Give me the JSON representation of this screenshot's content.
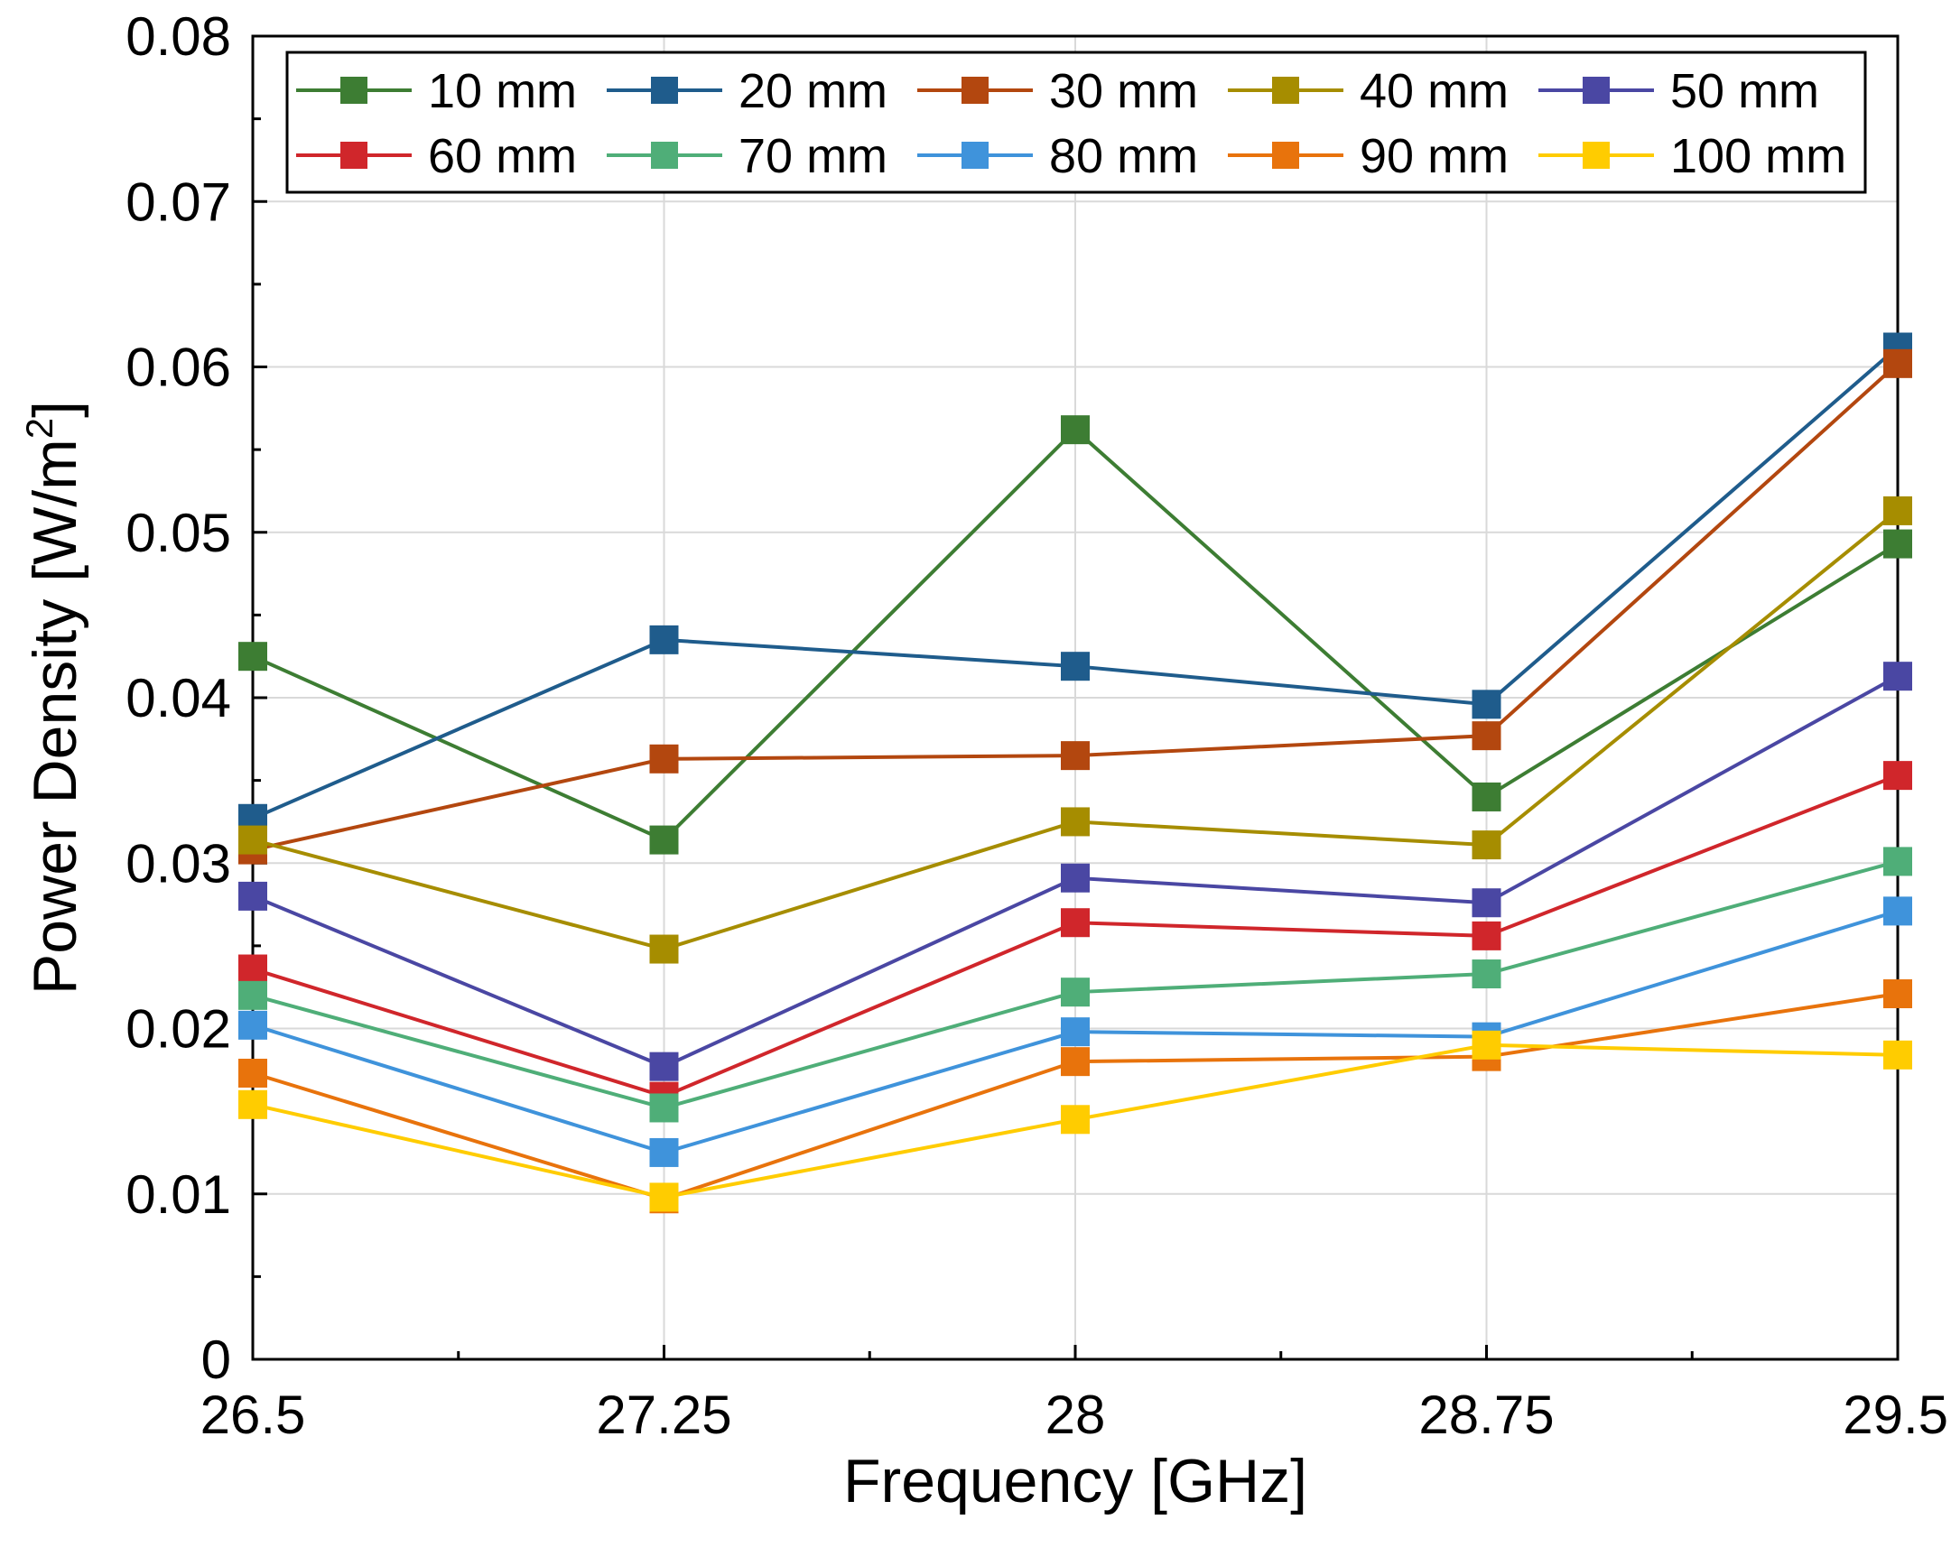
{
  "chart_data": {
    "type": "line",
    "title": "",
    "xlabel": "Frequency [GHz]",
    "ylabel_main": "Power Density [W/m",
    "ylabel_sup": "2",
    "ylabel_end": "]",
    "x": [
      26.5,
      27.25,
      28,
      28.75,
      29.5
    ],
    "x_tick_labels": [
      "26.5",
      "27.25",
      "28",
      "28.75",
      "29.5"
    ],
    "xlim": [
      26.5,
      29.5
    ],
    "y_ticks": [
      0,
      0.01,
      0.02,
      0.03,
      0.04,
      0.05,
      0.06,
      0.07,
      0.08
    ],
    "y_tick_labels": [
      "0",
      "0.01",
      "0.02",
      "0.03",
      "0.04",
      "0.05",
      "0.06",
      "0.07",
      "0.08"
    ],
    "ylim": [
      0,
      0.08
    ],
    "grid": true,
    "legend_position": "top",
    "series": [
      {
        "name": "10 mm",
        "color": "#3d7d33",
        "values": [
          0.0425,
          0.0314,
          0.0562,
          0.034,
          0.0493
        ]
      },
      {
        "name": "20 mm",
        "color": "#1f5c8c",
        "values": [
          0.0327,
          0.0435,
          0.0419,
          0.0396,
          0.0612
        ]
      },
      {
        "name": "30 mm",
        "color": "#b3470f",
        "values": [
          0.0308,
          0.0363,
          0.0365,
          0.0377,
          0.0602
        ]
      },
      {
        "name": "40 mm",
        "color": "#a68d00",
        "values": [
          0.0314,
          0.0248,
          0.0325,
          0.0311,
          0.0513
        ]
      },
      {
        "name": "50 mm",
        "color": "#4a47a3",
        "values": [
          0.028,
          0.0177,
          0.0291,
          0.0276,
          0.0413
        ]
      },
      {
        "name": "60 mm",
        "color": "#d0262b",
        "values": [
          0.0236,
          0.0159,
          0.0264,
          0.0256,
          0.0353
        ]
      },
      {
        "name": "70 mm",
        "color": "#4fae78",
        "values": [
          0.022,
          0.0152,
          0.0222,
          0.0233,
          0.0301
        ]
      },
      {
        "name": "80 mm",
        "color": "#3f93db",
        "values": [
          0.0202,
          0.0125,
          0.0198,
          0.0195,
          0.0271
        ]
      },
      {
        "name": "90 mm",
        "color": "#e8730c",
        "values": [
          0.0173,
          0.0097,
          0.018,
          0.0183,
          0.0221
        ]
      },
      {
        "name": "100 mm",
        "color": "#ffcc00",
        "values": [
          0.0154,
          0.0098,
          0.0145,
          0.019,
          0.0184
        ]
      }
    ]
  }
}
